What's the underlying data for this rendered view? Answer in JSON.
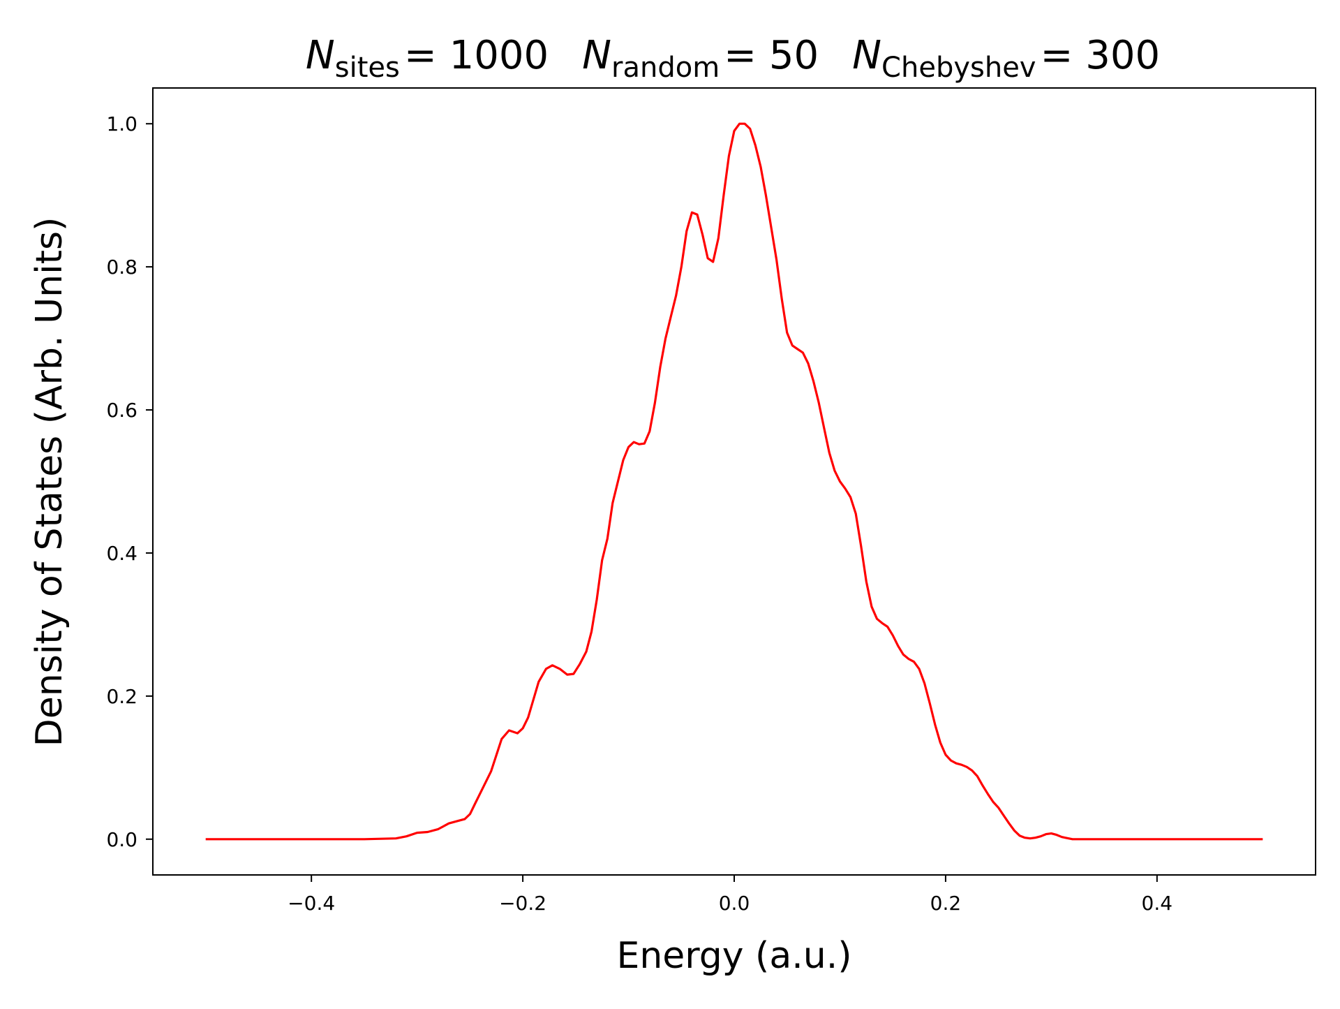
{
  "chart_data": {
    "type": "line",
    "title": {
      "parts": [
        {
          "symbol": "N",
          "subscript": "sites",
          "value": "= 1000"
        },
        {
          "symbol": "N",
          "subscript": "random",
          "value": "= 50"
        },
        {
          "symbol": "N",
          "subscript": "Chebyshev",
          "value": "= 300"
        }
      ]
    },
    "xlabel": "Energy (a.u.)",
    "ylabel": "Density of States (Arb. Units)",
    "xlim": [
      -0.55,
      0.55
    ],
    "ylim": [
      -0.05,
      1.05
    ],
    "x_ticks": [
      -0.4,
      -0.2,
      0.0,
      0.2,
      0.4
    ],
    "x_tick_labels": [
      "−0.4",
      "−0.2",
      "0.0",
      "0.2",
      "0.4"
    ],
    "y_ticks": [
      0.0,
      0.2,
      0.4,
      0.6,
      0.8,
      1.0
    ],
    "y_tick_labels": [
      "0.0",
      "0.2",
      "0.4",
      "0.6",
      "0.8",
      "1.0"
    ],
    "grid": false,
    "legend": "none",
    "series": [
      {
        "color": "#ff0000",
        "points": [
          [
            -0.5,
            0.0
          ],
          [
            -0.45,
            0.0
          ],
          [
            -0.4,
            0.0
          ],
          [
            -0.35,
            0.0
          ],
          [
            -0.32,
            0.001
          ],
          [
            -0.31,
            0.004
          ],
          [
            -0.3,
            0.009
          ],
          [
            -0.29,
            0.01
          ],
          [
            -0.28,
            0.014
          ],
          [
            -0.27,
            0.022
          ],
          [
            -0.26,
            0.026
          ],
          [
            -0.255,
            0.028
          ],
          [
            -0.25,
            0.035
          ],
          [
            -0.245,
            0.05
          ],
          [
            -0.24,
            0.065
          ],
          [
            -0.23,
            0.095
          ],
          [
            -0.22,
            0.14
          ],
          [
            -0.213,
            0.152
          ],
          [
            -0.205,
            0.148
          ],
          [
            -0.2,
            0.155
          ],
          [
            -0.195,
            0.17
          ],
          [
            -0.185,
            0.22
          ],
          [
            -0.178,
            0.238
          ],
          [
            -0.172,
            0.243
          ],
          [
            -0.165,
            0.238
          ],
          [
            -0.158,
            0.23
          ],
          [
            -0.152,
            0.231
          ],
          [
            -0.146,
            0.245
          ],
          [
            -0.14,
            0.262
          ],
          [
            -0.135,
            0.29
          ],
          [
            -0.13,
            0.335
          ],
          [
            -0.125,
            0.39
          ],
          [
            -0.12,
            0.42
          ],
          [
            -0.115,
            0.47
          ],
          [
            -0.11,
            0.5
          ],
          [
            -0.105,
            0.53
          ],
          [
            -0.1,
            0.548
          ],
          [
            -0.095,
            0.555
          ],
          [
            -0.09,
            0.552
          ],
          [
            -0.085,
            0.553
          ],
          [
            -0.08,
            0.57
          ],
          [
            -0.075,
            0.61
          ],
          [
            -0.07,
            0.66
          ],
          [
            -0.065,
            0.7
          ],
          [
            -0.06,
            0.73
          ],
          [
            -0.055,
            0.76
          ],
          [
            -0.05,
            0.8
          ],
          [
            -0.045,
            0.85
          ],
          [
            -0.04,
            0.876
          ],
          [
            -0.035,
            0.873
          ],
          [
            -0.03,
            0.845
          ],
          [
            -0.025,
            0.812
          ],
          [
            -0.02,
            0.807
          ],
          [
            -0.015,
            0.84
          ],
          [
            -0.01,
            0.9
          ],
          [
            -0.005,
            0.955
          ],
          [
            0.0,
            0.99
          ],
          [
            0.005,
            1.0
          ],
          [
            0.01,
            1.0
          ],
          [
            0.015,
            0.993
          ],
          [
            0.02,
            0.97
          ],
          [
            0.025,
            0.94
          ],
          [
            0.03,
            0.9
          ],
          [
            0.035,
            0.855
          ],
          [
            0.04,
            0.81
          ],
          [
            0.045,
            0.755
          ],
          [
            0.05,
            0.708
          ],
          [
            0.055,
            0.69
          ],
          [
            0.06,
            0.685
          ],
          [
            0.065,
            0.68
          ],
          [
            0.07,
            0.665
          ],
          [
            0.075,
            0.64
          ],
          [
            0.08,
            0.61
          ],
          [
            0.085,
            0.575
          ],
          [
            0.09,
            0.54
          ],
          [
            0.095,
            0.515
          ],
          [
            0.1,
            0.5
          ],
          [
            0.105,
            0.49
          ],
          [
            0.11,
            0.478
          ],
          [
            0.115,
            0.455
          ],
          [
            0.12,
            0.41
          ],
          [
            0.125,
            0.36
          ],
          [
            0.13,
            0.325
          ],
          [
            0.135,
            0.308
          ],
          [
            0.14,
            0.302
          ],
          [
            0.145,
            0.297
          ],
          [
            0.15,
            0.285
          ],
          [
            0.155,
            0.27
          ],
          [
            0.16,
            0.258
          ],
          [
            0.165,
            0.252
          ],
          [
            0.17,
            0.248
          ],
          [
            0.175,
            0.238
          ],
          [
            0.18,
            0.218
          ],
          [
            0.185,
            0.19
          ],
          [
            0.19,
            0.16
          ],
          [
            0.195,
            0.135
          ],
          [
            0.2,
            0.118
          ],
          [
            0.205,
            0.11
          ],
          [
            0.21,
            0.106
          ],
          [
            0.215,
            0.104
          ],
          [
            0.22,
            0.101
          ],
          [
            0.225,
            0.096
          ],
          [
            0.23,
            0.088
          ],
          [
            0.235,
            0.075
          ],
          [
            0.24,
            0.063
          ],
          [
            0.245,
            0.052
          ],
          [
            0.25,
            0.044
          ],
          [
            0.255,
            0.033
          ],
          [
            0.26,
            0.022
          ],
          [
            0.265,
            0.012
          ],
          [
            0.27,
            0.005
          ],
          [
            0.275,
            0.002
          ],
          [
            0.28,
            0.001
          ],
          [
            0.285,
            0.002
          ],
          [
            0.29,
            0.004
          ],
          [
            0.295,
            0.007
          ],
          [
            0.3,
            0.008
          ],
          [
            0.305,
            0.006
          ],
          [
            0.31,
            0.003
          ],
          [
            0.32,
            0.0
          ],
          [
            0.35,
            0.0
          ],
          [
            0.4,
            0.0
          ],
          [
            0.45,
            0.0
          ],
          [
            0.5,
            0.0
          ]
        ]
      }
    ]
  }
}
